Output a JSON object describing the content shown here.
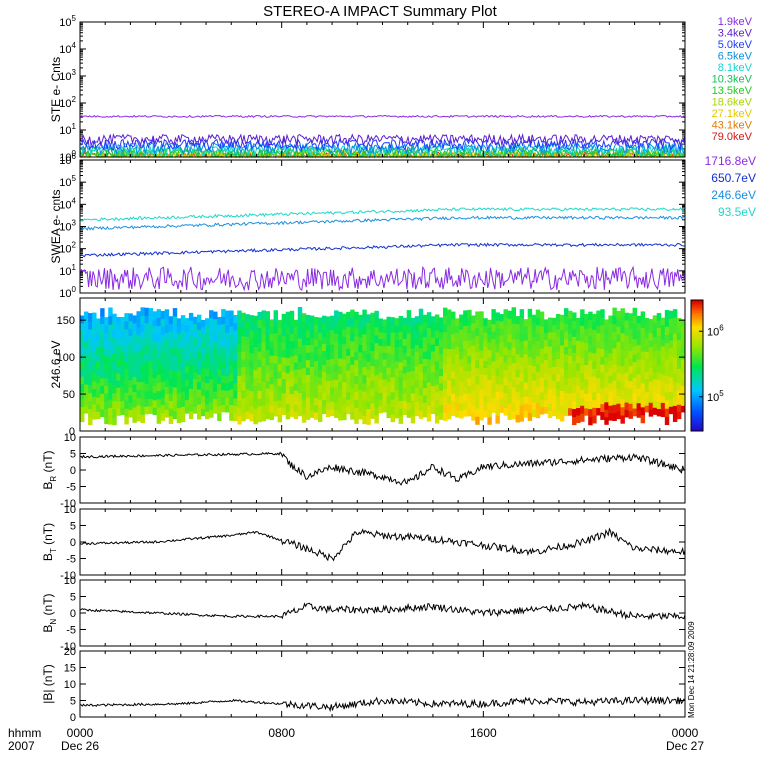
{
  "chart_data": {
    "type": "line",
    "title": "STEREO-A IMPACT Summary Plot",
    "x_axis": {
      "label_top": "hhmm",
      "label_bottom": "2007",
      "ticks": [
        "0000",
        "0800",
        "1600",
        "0000"
      ],
      "dates": [
        "Dec 26",
        "Dec 27"
      ],
      "range_hours": [
        0,
        24
      ]
    },
    "side_note": "Mon Dec 14 21:28:09 2009",
    "ste": {
      "ylabel": "STE e- Cnts",
      "log": true,
      "ylim": [
        1,
        100000
      ],
      "tick_labels": [
        "10^0",
        "10^1",
        "10^2",
        "10^3",
        "10^4",
        "10^5"
      ],
      "series": [
        {
          "name": "1.9keV",
          "color": "#8a2be2",
          "level": 32
        },
        {
          "name": "3.4keV",
          "color": "#5b1fd0",
          "level": 4.5
        },
        {
          "name": "5.0keV",
          "color": "#1e3cff",
          "level": 3.0
        },
        {
          "name": "6.5keV",
          "color": "#0a8fe0",
          "level": 2.2
        },
        {
          "name": "8.1keV",
          "color": "#19d3d3",
          "level": 1.8
        },
        {
          "name": "10.3keV",
          "color": "#15c05a",
          "level": 1.5
        },
        {
          "name": "13.5keV",
          "color": "#22cc22",
          "level": 1.3
        },
        {
          "name": "18.6keV",
          "color": "#a8d400",
          "level": 1.15
        },
        {
          "name": "27.1keV",
          "color": "#e6c800",
          "level": 1.05
        },
        {
          "name": "43.1keV",
          "color": "#e07b00",
          "level": 1.0
        },
        {
          "name": "79.0keV",
          "color": "#d01818",
          "level": 1.0
        }
      ]
    },
    "swea": {
      "ylabel": "SWEA e- cnts",
      "log": true,
      "ylim": [
        1,
        1000000
      ],
      "tick_labels": [
        "10^0",
        "10^1",
        "10^2",
        "10^3",
        "10^4",
        "10^5",
        "10^6"
      ],
      "series": [
        {
          "name": "1716.8eV",
          "color": "#8a2be2",
          "start": 4,
          "end": 4
        },
        {
          "name": "650.7eV",
          "color": "#1030d0",
          "start": 50,
          "end": 150
        },
        {
          "name": "246.6eV",
          "color": "#1890e0",
          "start": 800,
          "end": 2500
        },
        {
          "name": "93.5eV",
          "color": "#20d8c8",
          "start": 2000,
          "end": 6000
        }
      ]
    },
    "spectrogram": {
      "ylabel": "246.6 eV",
      "ylim": [
        0,
        180
      ],
      "yticks": [
        "0",
        "50",
        "100",
        "150"
      ],
      "colorbar_ticks": [
        "10^6",
        "10^5"
      ],
      "colorbar_range": [
        30000,
        3000000
      ]
    },
    "mag": [
      {
        "ylabel": "B_R (nT)",
        "base": "B",
        "sub": "R",
        "unit": "(nT)",
        "ylim": [
          -10,
          10
        ],
        "yticks": [
          "10",
          "5",
          "0",
          "-5",
          "-10"
        ],
        "profile": [
          [
            0,
            4
          ],
          [
            4,
            4.5
          ],
          [
            8,
            5
          ],
          [
            8.3,
            2
          ],
          [
            9,
            -2
          ],
          [
            10,
            1
          ],
          [
            12,
            -2
          ],
          [
            13,
            -4
          ],
          [
            14,
            1
          ],
          [
            15,
            -3
          ],
          [
            16,
            1
          ],
          [
            18,
            2
          ],
          [
            20,
            3
          ],
          [
            22,
            4
          ],
          [
            24,
            0
          ]
        ]
      },
      {
        "ylabel": "B_T (nT)",
        "base": "B",
        "sub": "T",
        "unit": "(nT)",
        "ylim": [
          -10,
          10
        ],
        "yticks": [
          "10",
          "5",
          "0",
          "-5",
          "-10"
        ],
        "profile": [
          [
            0,
            -0.5
          ],
          [
            3,
            0
          ],
          [
            6,
            2
          ],
          [
            7,
            3
          ],
          [
            9,
            -2
          ],
          [
            10,
            -5
          ],
          [
            11,
            3
          ],
          [
            12,
            2
          ],
          [
            14,
            1
          ],
          [
            16,
            -1
          ],
          [
            18,
            -3
          ],
          [
            20,
            0
          ],
          [
            21,
            3
          ],
          [
            22,
            -2
          ],
          [
            24,
            -3
          ]
        ]
      },
      {
        "ylabel": "B_N (nT)",
        "base": "B",
        "sub": "N",
        "unit": "(nT)",
        "ylim": [
          -10,
          10
        ],
        "yticks": [
          "10",
          "5",
          "0",
          "-5",
          "-10"
        ],
        "profile": [
          [
            0,
            1
          ],
          [
            3,
            0
          ],
          [
            6,
            -1
          ],
          [
            8,
            -1
          ],
          [
            9,
            2
          ],
          [
            10,
            1
          ],
          [
            12,
            1
          ],
          [
            14,
            2
          ],
          [
            16,
            0
          ],
          [
            18,
            1
          ],
          [
            20,
            2
          ],
          [
            22,
            -1
          ],
          [
            24,
            -1
          ]
        ]
      },
      {
        "ylabel": "|B| (nT)",
        "base": "|B|",
        "sub": "",
        "unit": "(nT)",
        "ylim": [
          0,
          20
        ],
        "yticks": [
          "20",
          "15",
          "10",
          "5",
          "0"
        ],
        "profile": [
          [
            0,
            3.5
          ],
          [
            4,
            4
          ],
          [
            6,
            5
          ],
          [
            8,
            4
          ],
          [
            10,
            3
          ],
          [
            12,
            5
          ],
          [
            14,
            4
          ],
          [
            16,
            4
          ],
          [
            18,
            5
          ],
          [
            20,
            4.5
          ],
          [
            22,
            5
          ],
          [
            24,
            5
          ]
        ]
      }
    ]
  }
}
